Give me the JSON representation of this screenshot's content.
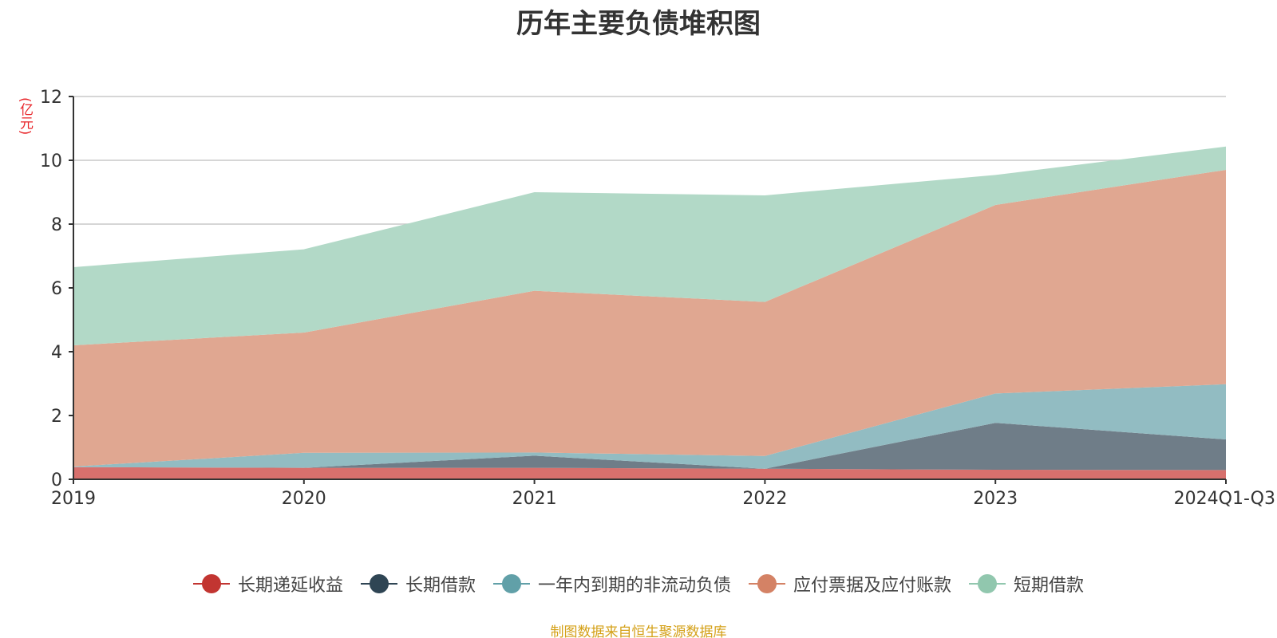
{
  "chart_data": {
    "type": "area",
    "stacked": true,
    "title": "历年主要负债堆积图",
    "unit_label": "(亿元)",
    "categories": [
      "2019",
      "2020",
      "2021",
      "2022",
      "2023",
      "2024Q1-Q3"
    ],
    "ylim": [
      0,
      12
    ],
    "yticks": [
      0,
      2,
      4,
      6,
      8,
      10,
      12
    ],
    "grid": true,
    "legend_position": "bottom",
    "series": [
      {
        "name": "长期递延收益",
        "color": "#c23531",
        "fill": "#d7706d",
        "values": [
          0.38,
          0.36,
          0.36,
          0.33,
          0.3,
          0.29
        ]
      },
      {
        "name": "长期借款",
        "color": "#2f4554",
        "fill": "#6f7d88",
        "values": [
          0.0,
          0.0,
          0.38,
          0.0,
          1.47,
          0.96
        ]
      },
      {
        "name": "一年内到期的非流动负债",
        "color": "#61a0a8",
        "fill": "#92bcc2",
        "values": [
          0.02,
          0.47,
          0.1,
          0.4,
          0.92,
          1.73
        ]
      },
      {
        "name": "应付票据及应付账款",
        "color": "#d48265",
        "fill": "#e0a791",
        "values": [
          3.8,
          3.77,
          5.07,
          4.83,
          5.91,
          6.72
        ]
      },
      {
        "name": "短期借款",
        "color": "#91c7ae",
        "fill": "#b2d9c7",
        "values": [
          2.45,
          2.61,
          3.09,
          3.34,
          0.94,
          0.73
        ]
      }
    ]
  },
  "source_note": "制图数据来自恒生聚源数据库"
}
